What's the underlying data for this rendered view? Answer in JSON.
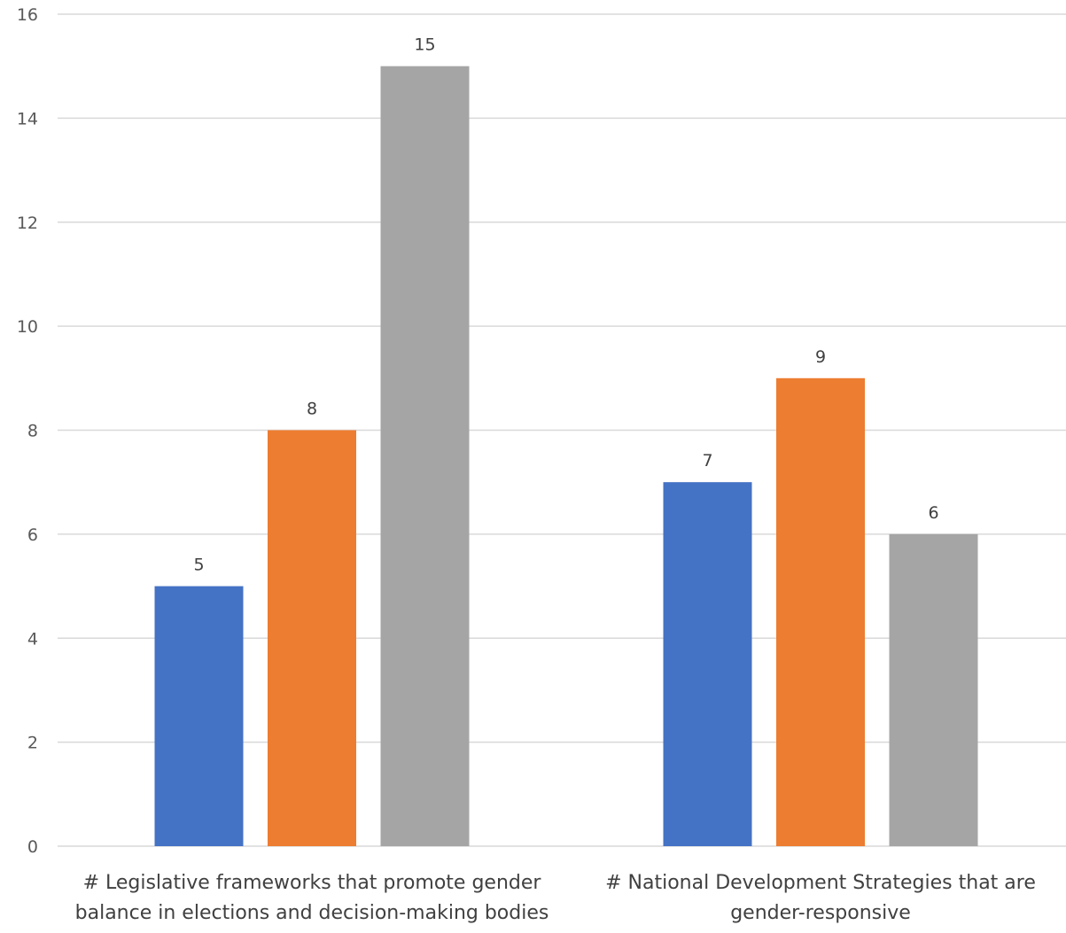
{
  "chart_data": {
    "type": "bar",
    "categories": [
      [
        "# Legislative frameworks that promote gender",
        "balance in elections and decision-making bodies"
      ],
      [
        "# National Development Strategies that are",
        "gender-responsive"
      ]
    ],
    "series": [
      {
        "color": "#4472C4",
        "values": [
          5,
          7
        ]
      },
      {
        "color": "#ED7D31",
        "values": [
          8,
          9
        ]
      },
      {
        "color": "#A5A5A5",
        "values": [
          15,
          6
        ]
      }
    ],
    "ylim": [
      0,
      16
    ],
    "yticks": [
      0,
      2,
      4,
      6,
      8,
      10,
      12,
      14,
      16
    ],
    "grid": true,
    "legend": "none",
    "title": "",
    "xlabel": "",
    "ylabel": ""
  }
}
